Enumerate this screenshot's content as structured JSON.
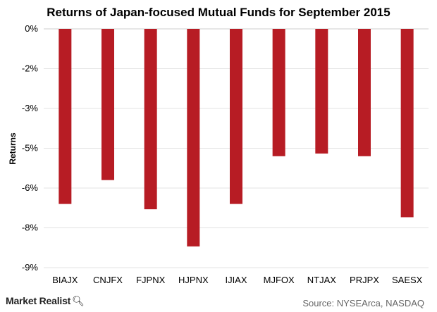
{
  "chart_data": {
    "type": "bar",
    "title": "Returns of Japan-focused Mutual Funds for September 2015",
    "ylabel": "Returns",
    "xlabel": "",
    "categories": [
      "BIAJX",
      "CNJFX",
      "FJPNX",
      "HJPNX",
      "IJIAX",
      "MJFOX",
      "NTJAX",
      "PRJPX",
      "SAESX"
    ],
    "values": [
      -6.6,
      -5.7,
      -6.8,
      -8.2,
      -6.6,
      -4.8,
      -4.7,
      -4.8,
      -7.1
    ],
    "y_tick_labels": [
      "0%",
      "-2%",
      "-3%",
      "-5%",
      "-6%",
      "-8%",
      "-9%"
    ],
    "ylim": [
      -9,
      0
    ],
    "grid": true,
    "bar_color": "#b71c24"
  },
  "footer": {
    "brand": "Market Realist",
    "brand_icon": "magnifier-icon",
    "source": "Source: NYSEArca, NASDAQ"
  }
}
